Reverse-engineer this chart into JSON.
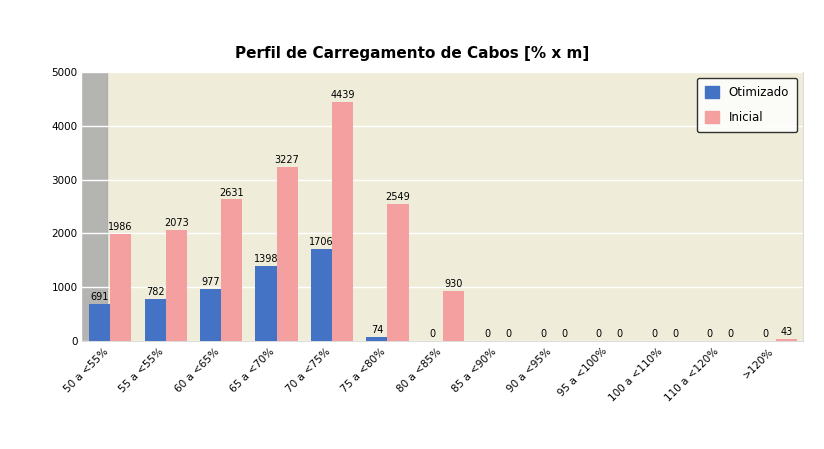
{
  "title": "Perfil de Carregamento de Cabos [% x m]",
  "categories": [
    "50 a <55%",
    "55 a <55%",
    "60 a <65%",
    "65 a <70%",
    "70 a <75%",
    "75 a <80%",
    "80 a <85%",
    "85 a <90%",
    "90 a <95%",
    "95 a <100%",
    "100 a <110%",
    "110 a <120%",
    ">120%"
  ],
  "otimizado": [
    691,
    782,
    977,
    1398,
    1706,
    74,
    0,
    0,
    0,
    0,
    0,
    0,
    0
  ],
  "inicial": [
    1986,
    2073,
    2631,
    3227,
    4439,
    2549,
    930,
    0,
    0,
    0,
    0,
    0,
    43
  ],
  "otimizado_color": "#4472C4",
  "inicial_color": "#F4A0A0",
  "ylim": [
    0,
    5000
  ],
  "yticks": [
    0,
    1000,
    2000,
    3000,
    4000,
    5000
  ],
  "background_color": "#EFEDDA",
  "outer_background": "#FFFFFF",
  "legend_labels": [
    "Otimizado",
    "Inicial"
  ],
  "title_fontsize": 11,
  "tick_fontsize": 7.5,
  "bar_width": 0.38,
  "gray_column_color": "#AAAAAA"
}
